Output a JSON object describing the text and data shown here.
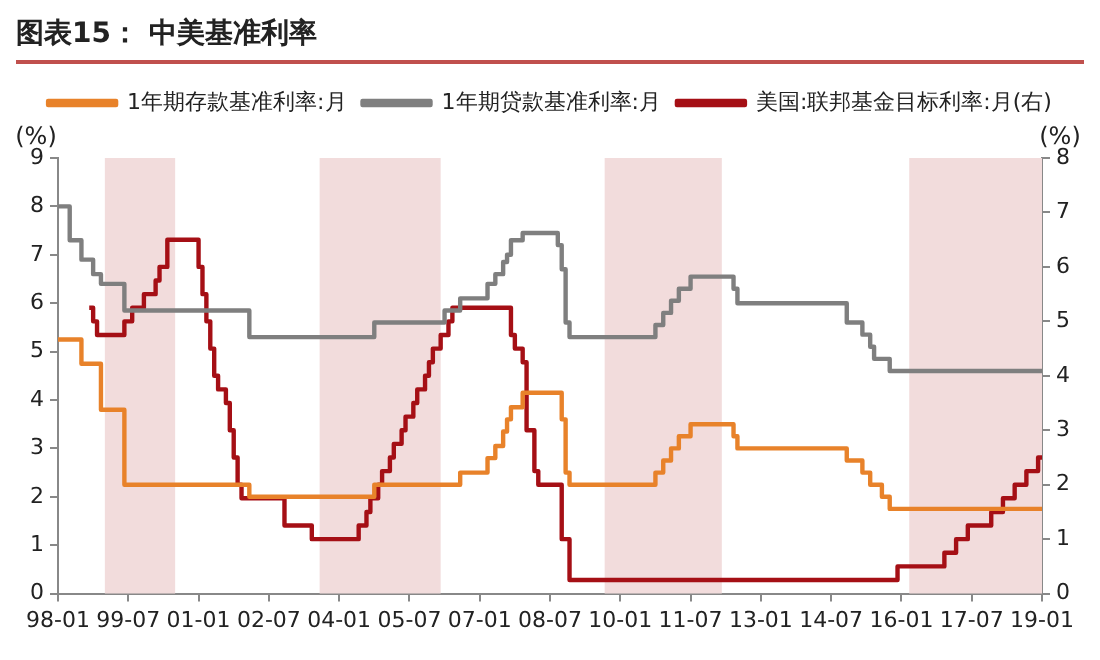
{
  "chart_data": {
    "type": "step",
    "title": "图表15： 中美基准利率",
    "ylabel": "(%)",
    "y2label": "(%)",
    "xlim": [
      "1998-01",
      "2019-01"
    ],
    "xticks": [
      {
        "value": "1998-01",
        "label": "98-01"
      },
      {
        "value": "1999-07",
        "label": "99-07"
      },
      {
        "value": "2001-01",
        "label": "01-01"
      },
      {
        "value": "2002-07",
        "label": "02-07"
      },
      {
        "value": "2004-01",
        "label": "04-01"
      },
      {
        "value": "2005-07",
        "label": "05-07"
      },
      {
        "value": "2007-01",
        "label": "07-01"
      },
      {
        "value": "2008-07",
        "label": "08-07"
      },
      {
        "value": "2010-01",
        "label": "10-01"
      },
      {
        "value": "2011-07",
        "label": "11-07"
      },
      {
        "value": "2013-01",
        "label": "13-01"
      },
      {
        "value": "2014-07",
        "label": "14-07"
      },
      {
        "value": "2016-01",
        "label": "16-01"
      },
      {
        "value": "2017-07",
        "label": "17-07"
      },
      {
        "value": "2019-01",
        "label": "19-01"
      }
    ],
    "ylim": [
      0,
      9
    ],
    "yticks": [
      0,
      1,
      2,
      3,
      4,
      5,
      6,
      7,
      8,
      9
    ],
    "y2lim": [
      0,
      8
    ],
    "y2ticks": [
      0,
      1,
      2,
      3,
      4,
      5,
      6,
      7,
      8
    ],
    "grid": false,
    "legend": "top",
    "marker": "none",
    "line_style": "solid",
    "bands": [
      {
        "axis": "x",
        "from": "1999-01",
        "to": "2000-07",
        "color": "#f2dcdc"
      },
      {
        "axis": "x",
        "from": "2003-08",
        "to": "2006-03",
        "color": "#f2dcdc"
      },
      {
        "axis": "x",
        "from": "2009-09",
        "to": "2012-03",
        "color": "#f2dcdc"
      },
      {
        "axis": "x",
        "from": "2016-03",
        "to": "2019-01",
        "color": "#f2dcdc"
      }
    ],
    "series": [
      {
        "name": "1年期存款基准利率:月",
        "color": "#e8822a",
        "x": [
          "1998-01",
          "1998-07",
          "1998-12",
          "1999-06",
          "2002-02",
          "2004-10",
          "2006-08",
          "2007-03",
          "2007-05",
          "2007-07",
          "2007-08",
          "2007-09",
          "2007-12",
          "2008-10",
          "2008-11",
          "2008-12",
          "2010-10",
          "2010-12",
          "2011-02",
          "2011-04",
          "2011-07",
          "2012-06",
          "2012-07",
          "2014-11",
          "2015-03",
          "2015-05",
          "2015-08",
          "2015-10",
          "2019-01"
        ],
        "values": [
          5.25,
          4.75,
          3.8,
          2.25,
          2.0,
          2.25,
          2.5,
          2.8,
          3.05,
          3.35,
          3.6,
          3.85,
          4.15,
          3.6,
          2.5,
          2.25,
          2.5,
          2.75,
          3.0,
          3.25,
          3.5,
          3.25,
          3.0,
          2.75,
          2.5,
          2.25,
          2.0,
          1.75,
          1.75
        ]
      },
      {
        "name": "1年期贷款基准利率:月",
        "color": "#7f7f7f",
        "x": [
          "1998-01",
          "1998-04",
          "1998-07",
          "1998-10",
          "1998-12",
          "1999-06",
          "2002-02",
          "2004-10",
          "2006-04",
          "2006-08",
          "2007-03",
          "2007-05",
          "2007-07",
          "2007-08",
          "2007-09",
          "2007-12",
          "2008-09",
          "2008-10",
          "2008-11",
          "2008-12",
          "2010-10",
          "2010-12",
          "2011-02",
          "2011-04",
          "2011-07",
          "2012-06",
          "2012-07",
          "2014-11",
          "2015-03",
          "2015-05",
          "2015-06",
          "2015-10",
          "2019-01"
        ],
        "values": [
          8.0,
          7.3,
          6.9,
          6.6,
          6.4,
          5.85,
          5.3,
          5.6,
          5.85,
          6.1,
          6.4,
          6.6,
          6.85,
          7.0,
          7.3,
          7.45,
          7.2,
          6.7,
          5.6,
          5.3,
          5.55,
          5.8,
          6.05,
          6.3,
          6.55,
          6.3,
          6.0,
          5.6,
          5.35,
          5.1,
          4.85,
          4.6,
          4.6
        ]
      },
      {
        "name": "美国:联邦基金目标利率:月(右)",
        "color": "#a50f15",
        "axis": "y2",
        "x": [
          "1998-09",
          "1998-10",
          "1998-11",
          "1999-06",
          "1999-08",
          "1999-11",
          "2000-02",
          "2000-03",
          "2000-05",
          "2001-01",
          "2001-02",
          "2001-03",
          "2001-04",
          "2001-05",
          "2001-06",
          "2001-08",
          "2001-09",
          "2001-10",
          "2001-11",
          "2001-12",
          "2002-11",
          "2003-06",
          "2004-06",
          "2004-08",
          "2004-09",
          "2004-11",
          "2004-12",
          "2005-02",
          "2005-03",
          "2005-05",
          "2005-06",
          "2005-08",
          "2005-09",
          "2005-11",
          "2005-12",
          "2006-01",
          "2006-03",
          "2006-05",
          "2006-06",
          "2007-09",
          "2007-10",
          "2007-12",
          "2008-01",
          "2008-03",
          "2008-04",
          "2008-10",
          "2008-12",
          "2015-12",
          "2016-12",
          "2017-03",
          "2017-06",
          "2017-12",
          "2018-03",
          "2018-06",
          "2018-09",
          "2018-12",
          "2019-01"
        ],
        "values": [
          5.25,
          5.0,
          4.75,
          5.0,
          5.25,
          5.5,
          5.75,
          6.0,
          6.5,
          6.0,
          5.5,
          5.0,
          4.5,
          4.0,
          3.75,
          3.5,
          3.0,
          2.5,
          2.0,
          1.75,
          1.25,
          1.0,
          1.25,
          1.5,
          1.75,
          2.0,
          2.25,
          2.5,
          2.75,
          3.0,
          3.25,
          3.5,
          3.75,
          4.0,
          4.25,
          4.5,
          4.75,
          5.0,
          5.25,
          4.75,
          4.5,
          4.25,
          3.0,
          2.25,
          2.0,
          1.0,
          0.25,
          0.5,
          0.75,
          1.0,
          1.25,
          1.5,
          1.75,
          2.0,
          2.25,
          2.5,
          2.5
        ]
      }
    ]
  }
}
